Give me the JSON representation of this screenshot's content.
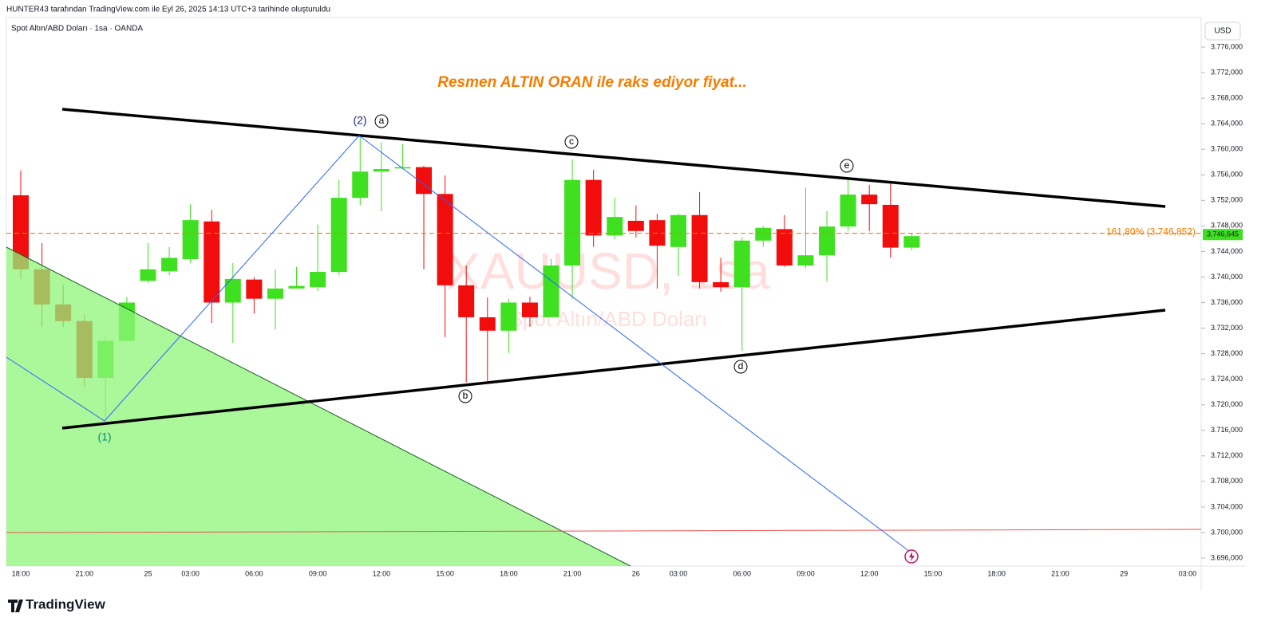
{
  "chart_data": {
    "type": "candlestick",
    "header": "HUNTER43 tarafından TradingView.com ile Eyl 26, 2025 14:13 UTC+3 tarihinde oluşturuldu",
    "symbol": "Spot Altın/ABD Doları · 1sa · OANDA",
    "currency": "USD",
    "annotation": "Resmen ALTIN ORAN ile raks ediyor fiyat...",
    "watermark": "XAUUSD, 1sa",
    "watermark_subtitle": "Spot Altın/ABD Doları",
    "wave_labels": [
      "(1)",
      "(2)",
      "a",
      "b",
      "c",
      "d",
      "e"
    ],
    "brand": "TradingView",
    "up_color": "#3ee01f",
    "down_color": "#f20d0d",
    "categories": [
      "18:00",
      null,
      null,
      "21:00",
      null,
      null,
      "25",
      null,
      "03:00",
      null,
      null,
      "06:00",
      null,
      null,
      "09:00",
      null,
      null,
      "12:00",
      null,
      null,
      "15:00",
      null,
      null,
      "18:00",
      null,
      null,
      "21:00",
      null,
      null,
      "26",
      null,
      "03:00",
      null,
      null,
      "06:00",
      null,
      null,
      "09:00",
      null,
      null,
      "12:00",
      null,
      null,
      "15:00",
      null,
      null,
      "18:00",
      null,
      null,
      "21:00",
      null,
      null,
      "29",
      null,
      null,
      "03:00"
    ],
    "open": [
      3752.8,
      3741.2,
      3735.7,
      3733.1,
      3724.2,
      3730.0,
      3739.4,
      3740.9,
      3742.8,
      3748.7,
      3736.0,
      3739.6,
      3736.6,
      3738.2,
      3738.4,
      3740.8,
      3752.4,
      3756.5,
      3757.0,
      3757.2,
      3753.0,
      3738.7,
      3733.7,
      3731.6,
      3736.0,
      3733.7,
      3741.8,
      3755.2,
      3746.5,
      3748.8,
      3748.9,
      3744.7,
      3749.7,
      3739.2,
      3738.4,
      3745.7,
      3747.5,
      3741.8,
      3743.4,
      3747.9,
      3752.9,
      3751.3,
      3744.6,
      null,
      null,
      null,
      null,
      null,
      null,
      null,
      null,
      null,
      null,
      null,
      null,
      null
    ],
    "high": [
      3756.7,
      3745.3,
      3738.8,
      3734.1,
      3730.7,
      3736.9,
      3745.3,
      3744.7,
      3751.4,
      3750.5,
      3742.2,
      3740.0,
      3741.2,
      3741.6,
      3748.2,
      3755.2,
      3762.1,
      3761.1,
      3760.8,
      3757.4,
      3755.9,
      3741.8,
      3736.8,
      3736.6,
      3736.9,
      3742.8,
      3758.4,
      3756.8,
      3752.4,
      3751.2,
      3749.9,
      3749.9,
      3753.3,
      3743.0,
      3746.2,
      3748.0,
      3749.7,
      3754.0,
      3750.3,
      3755.2,
      3754.4,
      3754.7,
      3746.9,
      null,
      null,
      null,
      null,
      null,
      null,
      null,
      null,
      null,
      null,
      null,
      null,
      null
    ],
    "low": [
      3739.7,
      3732.2,
      3732.2,
      3722.8,
      3717.6,
      3730.0,
      3739.1,
      3740.3,
      3742.2,
      3732.8,
      3729.7,
      3734.3,
      3731.8,
      3738.2,
      3737.8,
      3740.3,
      3751.2,
      3750.3,
      3757.0,
      3741.2,
      3730.6,
      3723.5,
      3723.7,
      3728.1,
      3732.2,
      3733.7,
      3736.6,
      3744.7,
      3745.9,
      3746.2,
      3738.2,
      3740.2,
      3738.2,
      3737.7,
      3728.4,
      3744.7,
      3741.6,
      3741.4,
      3739.3,
      3747.2,
      3747.2,
      3743.0,
      3744.2,
      null,
      null,
      null,
      null,
      null,
      null,
      null,
      null,
      null,
      null,
      null,
      null,
      null
    ],
    "close": [
      3741.2,
      3735.7,
      3733.1,
      3724.2,
      3730.0,
      3736.0,
      3741.2,
      3743.0,
      3748.9,
      3736.0,
      3739.7,
      3736.6,
      3738.2,
      3738.6,
      3740.8,
      3752.4,
      3756.5,
      3756.9,
      3757.2,
      3753.0,
      3738.7,
      3733.7,
      3731.6,
      3736.0,
      3733.7,
      3741.8,
      3755.2,
      3746.5,
      3749.4,
      3747.2,
      3744.9,
      3749.7,
      3739.2,
      3738.4,
      3745.7,
      3747.7,
      3741.8,
      3743.4,
      3747.9,
      3752.9,
      3751.4,
      3744.6,
      3746.4,
      null,
      null,
      null,
      null,
      null,
      null,
      null,
      null,
      null,
      null,
      null,
      null,
      null
    ],
    "fib_level": {
      "value": 3746.852,
      "label": "161,80% (3.746,852)"
    },
    "last_price": {
      "value": 3746.645,
      "label": "3.746,645"
    },
    "ylim": [
      3694.75,
      3777.75
    ],
    "yticks": [
      {
        "value": 3696,
        "label": "3.696,000"
      },
      {
        "value": 3700,
        "label": "3.700,000"
      },
      {
        "value": 3704,
        "label": "3.704,000"
      },
      {
        "value": 3708,
        "label": "3.708,000"
      },
      {
        "value": 3712,
        "label": "3.712,000"
      },
      {
        "value": 3716,
        "label": "3.716,000"
      },
      {
        "value": 3720,
        "label": "3.720,000"
      },
      {
        "value": 3724,
        "label": "3.724,000"
      },
      {
        "value": 3728,
        "label": "3.728,000"
      },
      {
        "value": 3732,
        "label": "3.732,000"
      },
      {
        "value": 3736,
        "label": "3.736,000"
      },
      {
        "value": 3740,
        "label": "3.740,000"
      },
      {
        "value": 3744,
        "label": "3.744,000"
      },
      {
        "value": 3748,
        "label": "3.748,000"
      },
      {
        "value": 3752,
        "label": "3.752,000"
      },
      {
        "value": 3756,
        "label": "3.756,000"
      },
      {
        "value": 3760,
        "label": "3.760,000"
      },
      {
        "value": 3764,
        "label": "3.764,000"
      },
      {
        "value": 3768,
        "label": "3.768,000"
      },
      {
        "value": 3772,
        "label": "3.772,000"
      },
      {
        "value": 3776,
        "label": "3.776,000"
      }
    ],
    "grid": false
  }
}
